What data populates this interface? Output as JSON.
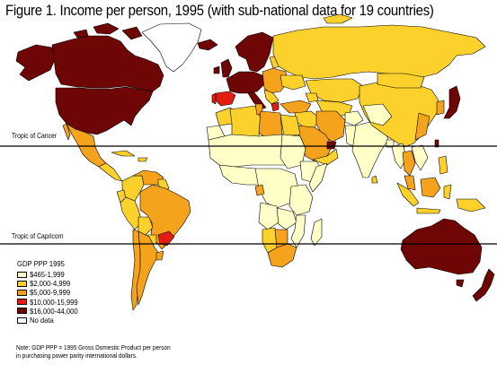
{
  "title": "Figure 1. Income per person, 1995 (with sub-national data for 19 countries)",
  "tropics": {
    "cancer": "Tropic of Cancer",
    "capricorn": "Tropic of Capricorn"
  },
  "legend": {
    "title": "GDP PPP 1995",
    "items": [
      {
        "label": "$465-1,999",
        "color": "#ffffc8"
      },
      {
        "label": "$2,000-4,999",
        "color": "#fcd12c"
      },
      {
        "label": "$5,000-9,999",
        "color": "#f5a21c"
      },
      {
        "label": "$10,000-15,999",
        "color": "#e31d12"
      },
      {
        "label": "$16,000-44,000",
        "color": "#6e0606"
      },
      {
        "label": "No data",
        "color": "#ffffff"
      }
    ]
  },
  "note": "Note: GDP PPP = 1995 Gross Domestic Product per person in purchasing power parity international dollars.",
  "colors": {
    "c1": "#ffffc8",
    "c2": "#fcd12c",
    "c3": "#f5a21c",
    "c4": "#e31d12",
    "c5": "#6e0606",
    "border": "#000000"
  }
}
